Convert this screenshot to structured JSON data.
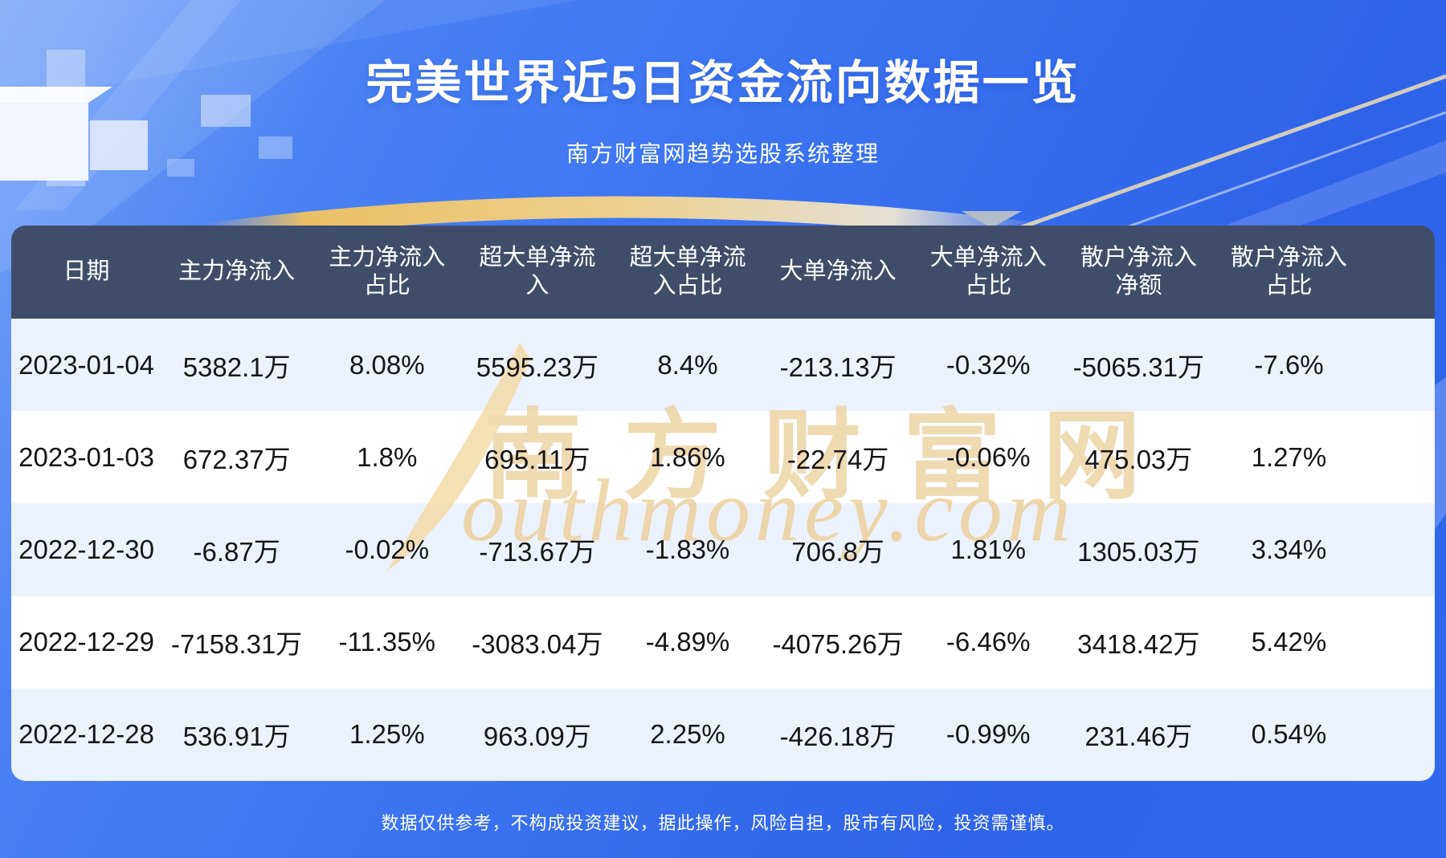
{
  "header": {
    "title": "完美世界近5日资金流向数据一览",
    "subtitle": "南方财富网趋势选股系统整理"
  },
  "chart_data": {
    "type": "table",
    "title": "完美世界近5日资金流向数据一览",
    "subtitle": "南方财富网趋势选股系统整理",
    "columns": [
      "日期",
      "主力净流入",
      "主力净流入占比",
      "超大单净流入",
      "超大单净流入占比",
      "大单净流入",
      "大单净流入占比",
      "散户净流入净额",
      "散户净流入占比"
    ],
    "rows": [
      [
        "2023-01-04",
        "5382.1万",
        "8.08%",
        "5595.23万",
        "8.4%",
        "-213.13万",
        "-0.32%",
        "-5065.31万",
        "-7.6%"
      ],
      [
        "2023-01-03",
        "672.37万",
        "1.8%",
        "695.11万",
        "1.86%",
        "-22.74万",
        "-0.06%",
        "475.03万",
        "1.27%"
      ],
      [
        "2022-12-30",
        "-6.87万",
        "-0.02%",
        "-713.67万",
        "-1.83%",
        "706.8万",
        "1.81%",
        "1305.03万",
        "3.34%"
      ],
      [
        "2022-12-29",
        "-7158.31万",
        "-11.35%",
        "-3083.04万",
        "-4.89%",
        "-4075.26万",
        "-6.46%",
        "3418.42万",
        "5.42%"
      ],
      [
        "2022-12-28",
        "536.91万",
        "1.25%",
        "963.09万",
        "2.25%",
        "-426.18万",
        "-0.99%",
        "231.46万",
        "0.54%"
      ]
    ]
  },
  "table_display": {
    "column_lines": [
      "日期",
      "主力净流入",
      "主力净流入\n占比",
      "超大单净流\n入",
      "超大单净流\n入占比",
      "大单净流入",
      "大单净流入\n占比",
      "散户净流入\n净额",
      "散户净流入\n占比"
    ]
  },
  "watermark": {
    "cn": "南方财富网",
    "en": "outhmoney.com"
  },
  "footer": {
    "disclaimer": "数据仅供参考，不构成投资建议，据此操作，风险自担，股市有风险，投资需谨慎。"
  },
  "colors": {
    "page_blue": "#2f68ec",
    "page_blue_light": "#7aa6f9",
    "header_bg": "#404d6a",
    "row_alt": "#ecf2fc",
    "row_white": "#ffffff",
    "gold_arc": "#f4c96b",
    "watermark_cream": "#ecd2a0",
    "cell_text": "#151515"
  }
}
